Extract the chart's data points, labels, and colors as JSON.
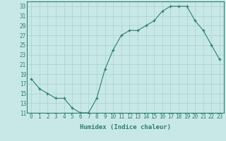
{
  "xlabel": "Humidex (Indice chaleur)",
  "ylabel": "",
  "x": [
    0,
    1,
    2,
    3,
    4,
    5,
    6,
    7,
    8,
    9,
    10,
    11,
    12,
    13,
    14,
    15,
    16,
    17,
    18,
    19,
    20,
    21,
    22,
    23
  ],
  "y": [
    18,
    16,
    15,
    14,
    14,
    12,
    11,
    11,
    14,
    20,
    24,
    27,
    28,
    28,
    29,
    30,
    32,
    33,
    33,
    33,
    30,
    28,
    25,
    22
  ],
  "line_color": "#2e7d6e",
  "marker": "+",
  "marker_color": "#2e7d6e",
  "bg_color": "#c8e8e8",
  "grid_color": "#a8d0d0",
  "ylim": [
    11,
    34
  ],
  "yticks": [
    11,
    13,
    15,
    17,
    19,
    21,
    23,
    25,
    27,
    29,
    31,
    33
  ],
  "xticks": [
    0,
    1,
    2,
    3,
    4,
    5,
    6,
    7,
    8,
    9,
    10,
    11,
    12,
    13,
    14,
    15,
    16,
    17,
    18,
    19,
    20,
    21,
    22,
    23
  ],
  "title_fontsize": 7,
  "label_fontsize": 6.5,
  "tick_fontsize": 5.5
}
